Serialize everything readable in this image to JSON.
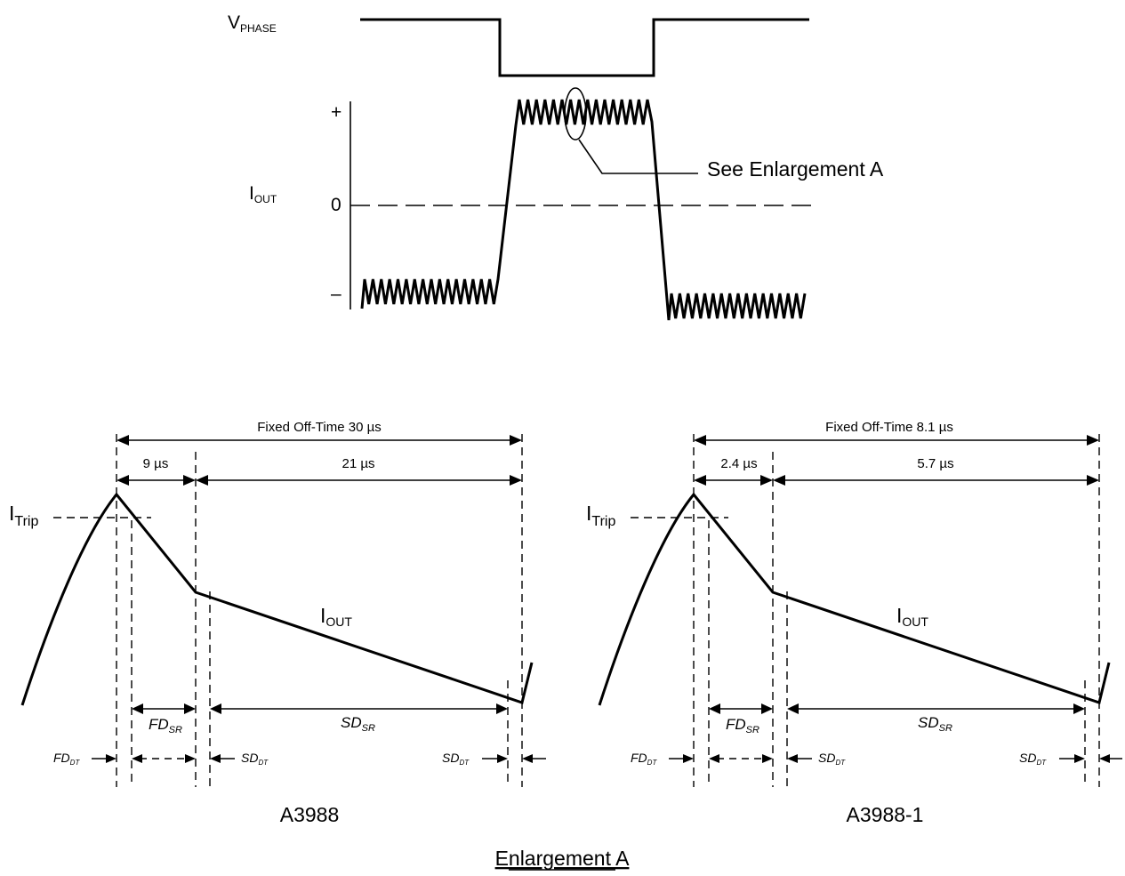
{
  "top": {
    "v_phase_main": "V",
    "v_phase_sub": "PHASE",
    "i_out_main": "I",
    "i_out_sub": "OUT",
    "plus": "+",
    "zero": "0",
    "minus": "–",
    "enlargement_callout": "See Enlargement A"
  },
  "left_panel": {
    "caption": "A3988",
    "fixed_off_time": "Fixed Off-Time 30 µs",
    "fast_time": "9 µs",
    "slow_time": "21 µs",
    "trip_main": "I",
    "trip_sub": "Trip",
    "iout_main": "I",
    "iout_sub": "OUT",
    "fd_sr_main": "FD",
    "fd_sr_sub": "SR",
    "sd_sr_main": "SD",
    "sd_sr_sub": "SR",
    "fd_dt_main": "FD",
    "fd_dt_sub": "DT",
    "sd_dt_main": "SD",
    "sd_dt_sub": "DT",
    "sd_dt2_main": "SD",
    "sd_dt2_sub": "DT"
  },
  "right_panel": {
    "caption": "A3988-1",
    "fixed_off_time": "Fixed Off-Time 8.1 µs",
    "fast_time": "2.4 µs",
    "slow_time": "5.7 µs",
    "trip_main": "I",
    "trip_sub": "Trip",
    "iout_main": "I",
    "iout_sub": "OUT",
    "fd_sr_main": "FD",
    "fd_sr_sub": "SR",
    "sd_sr_main": "SD",
    "sd_sr_sub": "SR",
    "fd_dt_main": "FD",
    "fd_dt_sub": "DT",
    "sd_dt_main": "SD",
    "sd_dt_sub": "DT",
    "sd_dt2_main": "SD",
    "sd_dt2_sub": "DT"
  },
  "footer": {
    "title": "Enlargement A"
  }
}
